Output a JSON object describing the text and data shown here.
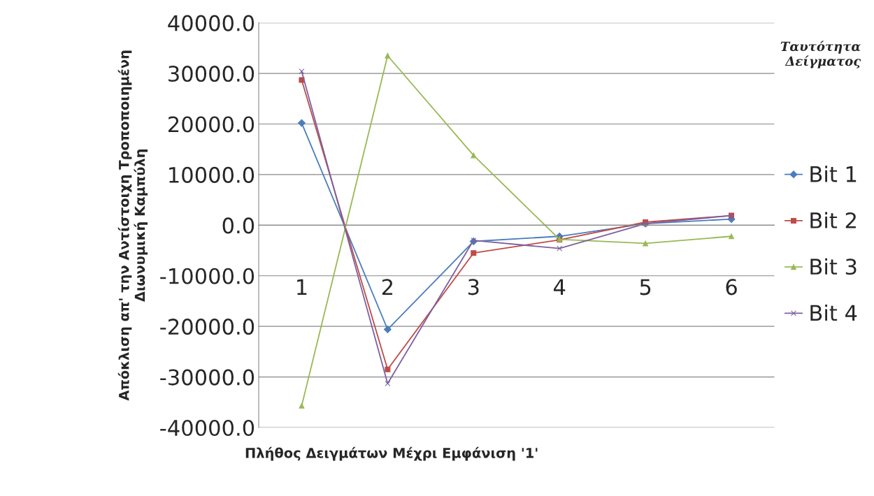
{
  "chart_data": {
    "type": "line",
    "xlabel": "Πλήθος Δειγμάτων Μέχρι Εμφάνιση '1'",
    "ylabel": "Απόκλιση απ' την Αντίστοιχη Τροποποιημένη\nΔιωνυμική Καμπύλη",
    "legend_title": "Ταυτότητα\nΔείγματος",
    "categories": [
      "1",
      "2",
      "3",
      "4",
      "5",
      "6"
    ],
    "series": [
      {
        "name": "Bit 1",
        "color": "#4a7ebb",
        "marker": "diamond",
        "values": [
          20200,
          -20600,
          -3200,
          -2200,
          300,
          1200
        ]
      },
      {
        "name": "Bit 2",
        "color": "#be4b48",
        "marker": "square",
        "values": [
          28700,
          -28500,
          -5500,
          -2900,
          600,
          1900
        ]
      },
      {
        "name": "Bit 3",
        "color": "#98b954",
        "marker": "triangle",
        "values": [
          -35700,
          33500,
          13800,
          -2800,
          -3600,
          -2200
        ]
      },
      {
        "name": "Bit 4",
        "color": "#7d60a0",
        "marker": "cross",
        "values": [
          30400,
          -31300,
          -3000,
          -4600,
          300,
          1900
        ]
      }
    ],
    "ylim": [
      -40000,
      40000
    ],
    "yticks": [
      {
        "value": -40000,
        "label": "-40000.0"
      },
      {
        "value": -30000,
        "label": "-30000.0"
      },
      {
        "value": -20000,
        "label": "-20000.0"
      },
      {
        "value": -10000,
        "label": "-10000.0"
      },
      {
        "value": 0,
        "label": "0.0"
      },
      {
        "value": 10000,
        "label": "10000.0"
      },
      {
        "value": 20000,
        "label": "20000.0"
      },
      {
        "value": 30000,
        "label": "30000.0"
      },
      {
        "value": 40000,
        "label": "40000.0"
      }
    ],
    "grid": "y",
    "legend": "right"
  }
}
